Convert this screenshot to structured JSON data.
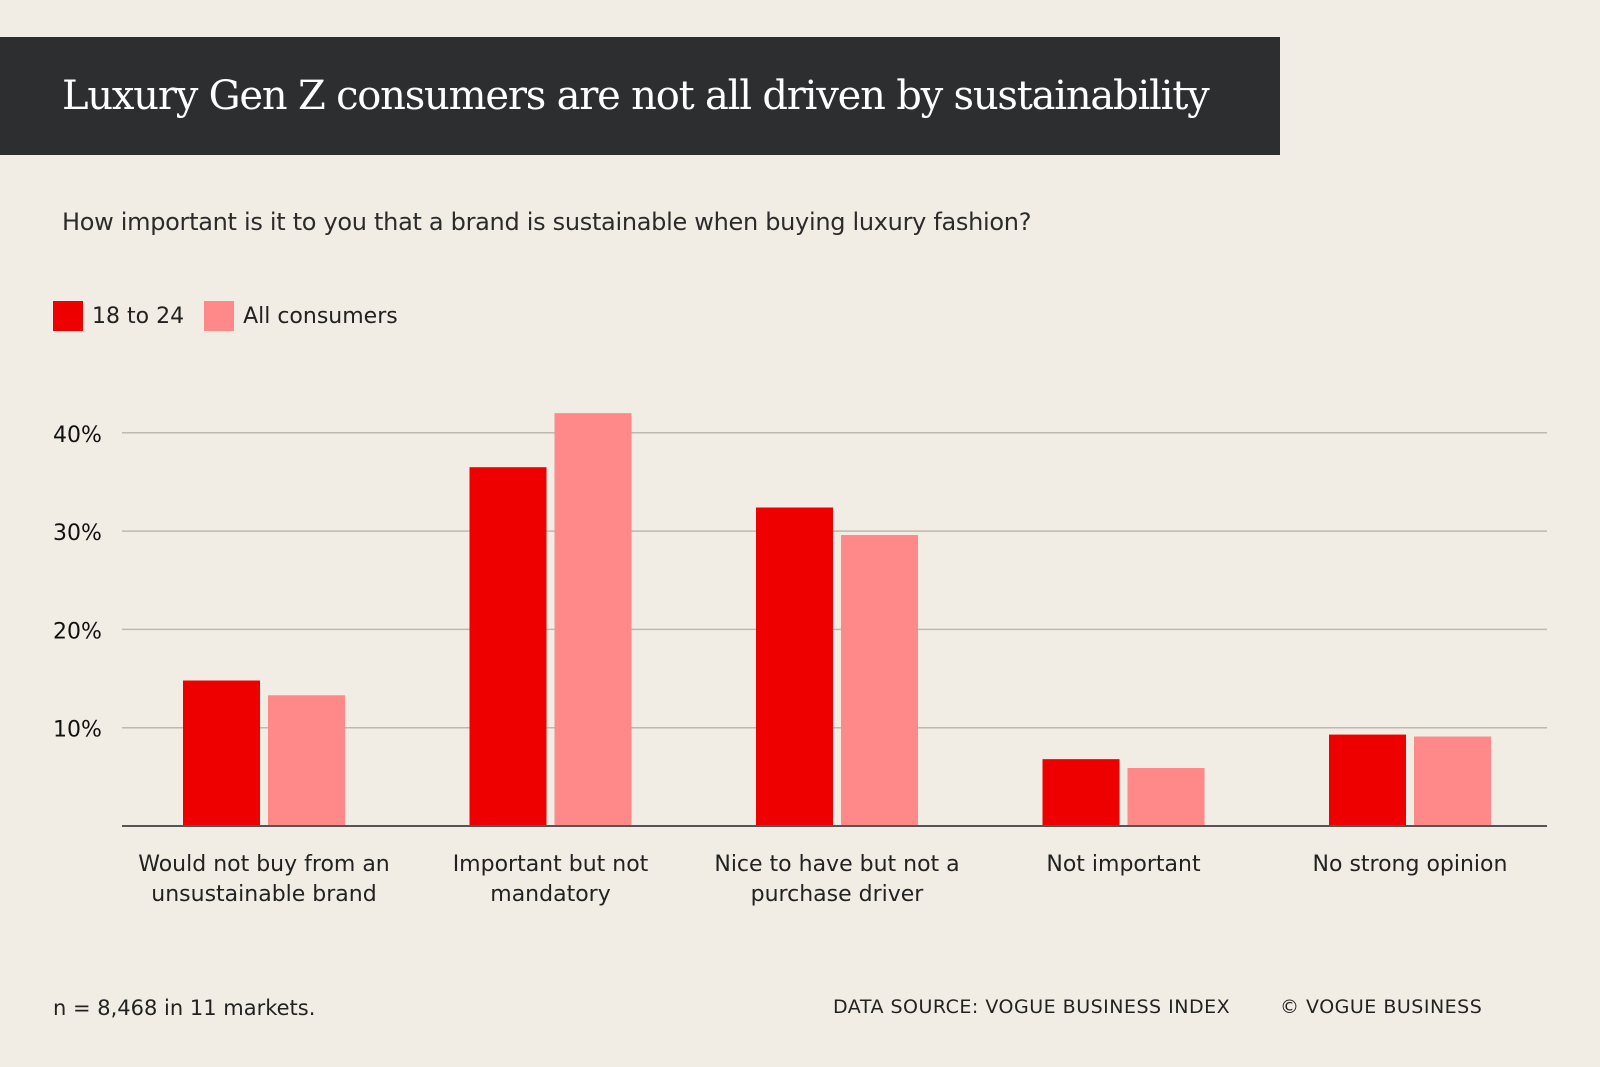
{
  "title": "Luxury Gen Z consumers are not all driven by sustainability",
  "subtitle": "How important is it to you that a brand is sustainable when buying luxury fashion?",
  "footnote": "n = 8,468 in 11 markets.",
  "source": "DATA SOURCE:  VOGUE BUSINESS INDEX",
  "copyright": "© VOGUE BUSINESS",
  "colors": {
    "series1": "#ee0000",
    "series2": "#ff8888",
    "background": "#f2ede4",
    "titlebar": "#2d2e30"
  },
  "chart_data": {
    "type": "bar",
    "title": "How important is it to you that a brand is sustainable when buying luxury fashion?",
    "categories": [
      "Would not buy from an unsustainable brand",
      "Important but not mandatory",
      "Nice to have but not a purchase driver",
      "Not important",
      "No strong opinion"
    ],
    "series": [
      {
        "name": "18 to 24",
        "values": [
          14.8,
          36.5,
          32.4,
          6.8,
          9.3
        ]
      },
      {
        "name": "All consumers",
        "values": [
          13.3,
          42.0,
          29.6,
          5.9,
          9.1
        ]
      }
    ],
    "yticks": [
      10,
      20,
      30,
      40
    ],
    "ytick_labels": [
      "10%",
      "20%",
      "30%",
      "40%"
    ],
    "ylim": [
      0,
      45
    ],
    "grid": true,
    "legend": "top-left",
    "xlabel": "",
    "ylabel": ""
  }
}
